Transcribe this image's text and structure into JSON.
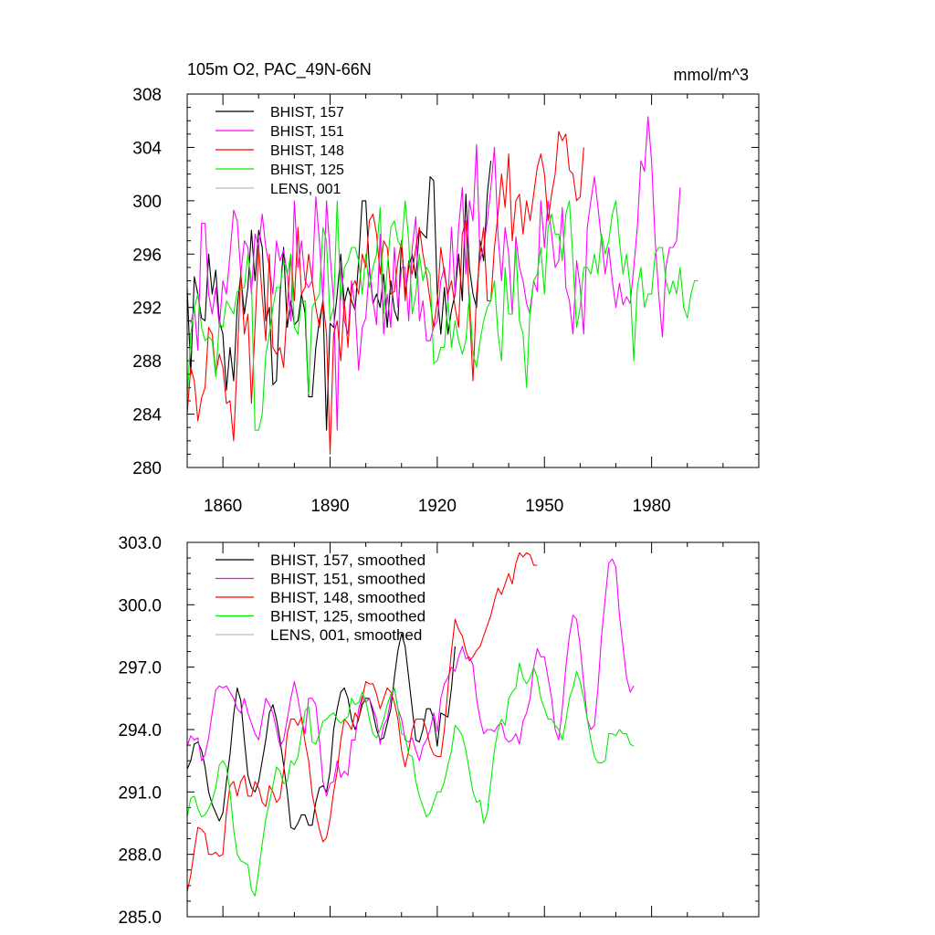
{
  "chart_data": [
    {
      "type": "line",
      "title_left": "105m O2, PAC_49N-66N",
      "title_right": "mmol/m^3",
      "xlim": [
        1850,
        2010
      ],
      "ylim": [
        280,
        308
      ],
      "yticks": [
        280,
        284,
        288,
        292,
        296,
        300,
        304,
        308
      ],
      "ytick_labels": [
        "280",
        "284",
        "288",
        "292",
        "296",
        "300",
        "304",
        "308"
      ],
      "xticks": [
        1860,
        1890,
        1920,
        1950,
        1980
      ],
      "xtick_labels": [
        "1860",
        "1890",
        "1920",
        "1950",
        "1980"
      ],
      "legend": [
        {
          "label": "BHIST, 157",
          "color": "#000000"
        },
        {
          "label": "BHIST, 151",
          "color": "#ff00ff"
        },
        {
          "label": "BHIST, 148",
          "color": "#ff0000"
        },
        {
          "label": "BHIST, 125",
          "color": "#00ee00"
        },
        {
          "label": "LENS, 001",
          "color": "#bbbbbb"
        }
      ],
      "series": [
        {
          "name": "BHIST, 157",
          "color": "#000000",
          "x_start": 1850,
          "values": [
            293.5,
            287,
            294.3,
            293,
            291.2,
            291,
            296,
            293,
            294.8,
            291,
            290,
            285.8,
            289,
            286.5,
            292,
            294.5,
            291.5,
            293.5,
            297.8,
            294,
            297.8,
            296.5,
            291,
            292,
            286.2,
            286.5,
            293,
            296.5,
            290.5,
            292.5,
            290.7,
            291,
            293,
            291.6,
            285.3,
            285.3,
            289,
            291,
            292.5,
            282.8,
            290.8,
            290.5,
            293,
            296,
            292.3,
            293.5,
            292.5,
            291.8,
            295.5,
            300,
            300,
            295,
            292.3,
            293,
            292,
            294.5,
            290.5,
            294,
            291.8,
            291,
            297,
            293,
            295,
            296,
            294.2,
            297.8,
            297.5,
            297.2,
            301.8,
            301.5,
            293,
            290,
            293.5,
            290,
            291.8,
            293,
            296,
            292.5,
            300.5,
            295,
            293,
            292,
            297,
            295.5,
            300.5,
            303
          ]
        },
        {
          "name": "BHIST, 151",
          "color": "#ff00ff",
          "x_start": 1851,
          "values": [
            290.8,
            292,
            288.8,
            298.3,
            298.3,
            293,
            291.5,
            293.5,
            290.5,
            294,
            293,
            296,
            299.3,
            298.5,
            294.5,
            297,
            296.5,
            293,
            297.5,
            296.5,
            299,
            296.5,
            295,
            293,
            297,
            295.5,
            296.3,
            294.5,
            291,
            300,
            295,
            297,
            294,
            293.5,
            294,
            300.3,
            297,
            292.5,
            300,
            296,
            292.5,
            282.8,
            295.5,
            291,
            290,
            294,
            292,
            287.3,
            290.5,
            291.2,
            295,
            292.5,
            290.7,
            297.5,
            290,
            293,
            290.5,
            296.5,
            292,
            295,
            295,
            291,
            296.5,
            298.8,
            291,
            292.5,
            289.5,
            289.5,
            290.5,
            291,
            294,
            295,
            292.5,
            298,
            293,
            298,
            301,
            294.5,
            300,
            298.5,
            304.2,
            295.5,
            296.5,
            298.5,
            301,
            304,
            297.5,
            294,
            298,
            296,
            291.5,
            297.3,
            295,
            294,
            292.3,
            291.5,
            294,
            293.2,
            300,
            296.5,
            300,
            297.5,
            295,
            295.5,
            299.5,
            293.5,
            292.5,
            290,
            295.5,
            293.5,
            290,
            298,
            300,
            301.8,
            299.5,
            297,
            294.5,
            296.5,
            294,
            292,
            293.8,
            292.2,
            292.8,
            292.3,
            295,
            298,
            303,
            302.2,
            306.3,
            303,
            297,
            293,
            289.8,
            295,
            296.5,
            296.5,
            297,
            301
          ]
        },
        {
          "name": "BHIST, 148",
          "color": "#ff0000",
          "x_start": 1850,
          "values": [
            284,
            287.5,
            286.5,
            283.5,
            285.2,
            286,
            290.5,
            290,
            287,
            288.5,
            287.5,
            284.8,
            285,
            282,
            288,
            294.7,
            290,
            291.5,
            284.8,
            290.5,
            296.5,
            292.8,
            289.5,
            296,
            289,
            288.5,
            289,
            287.5,
            292,
            296,
            292.5,
            298,
            293,
            293.5,
            296,
            294,
            292,
            290.5,
            292.5,
            290,
            281,
            290,
            291,
            288,
            292.5,
            289,
            293.5,
            294,
            293,
            296,
            295,
            298.5,
            299,
            297.5,
            294.5,
            297,
            296.5,
            293,
            293.2,
            295.5,
            297,
            292.5,
            295.5,
            294.5,
            296.5,
            298,
            296,
            294.5,
            292.5,
            290.5,
            292.5,
            296.5,
            294.5,
            293,
            294,
            292,
            290.5,
            297.5,
            298.5,
            292,
            286.5,
            293,
            296,
            298,
            292.5,
            292.5,
            296.5,
            299,
            302,
            299.5,
            303.5,
            297,
            300,
            300.5,
            297.5,
            300,
            298.5,
            300.5,
            302.5,
            303.5,
            302,
            298.5,
            300.5,
            302,
            305.2,
            304.5,
            305,
            302.3,
            302,
            300,
            300.3,
            304
          ]
        },
        {
          "name": "BHIST, 125",
          "color": "#00ee00",
          "x_start": 1850,
          "values": [
            285,
            290,
            292,
            293,
            290.5,
            289.5,
            289.8,
            289.5,
            286.8,
            290.8,
            290.5,
            292.5,
            292,
            291.5,
            293.2,
            293.3,
            293.5,
            296,
            294,
            282.8,
            282.8,
            284,
            288.5,
            290,
            292,
            293.5,
            293.5,
            295.5,
            294.5,
            296,
            290.5,
            290,
            292.5,
            292.5,
            285.5,
            292,
            292.5,
            293,
            298,
            297,
            291,
            292,
            300,
            292.5,
            295,
            295.5,
            296.5,
            296.5,
            295.5,
            293,
            296,
            293.5,
            295,
            296,
            299.5,
            291.5,
            295,
            298,
            298.5,
            297,
            296.5,
            300,
            297,
            291.5,
            293,
            296,
            294,
            295,
            294.5,
            287.8,
            288,
            289,
            289,
            292.5,
            289,
            291,
            289.5,
            288.5,
            289.5,
            293,
            288.5,
            287.5,
            289.5,
            291,
            292,
            292.5,
            294,
            290,
            288,
            295,
            291.5,
            291.5,
            296.5,
            291,
            290,
            286,
            292,
            294,
            294.5,
            296.5,
            293,
            298,
            299,
            297.5,
            297.5,
            295.5,
            299,
            300,
            295.5,
            290.5,
            292,
            295,
            295,
            294.5,
            296,
            294.5,
            297.5,
            296,
            297,
            299,
            300,
            297,
            294.5,
            296,
            293.5,
            288,
            293.5,
            295,
            292,
            293,
            293,
            296,
            296.5,
            296.5,
            294,
            293,
            294,
            293,
            295,
            292,
            291.2,
            293,
            294,
            294
          ]
        }
      ]
    },
    {
      "type": "line",
      "xlim": [
        1850,
        2010
      ],
      "ylim": [
        285,
        303
      ],
      "yticks": [
        285,
        288,
        291,
        294,
        297,
        300,
        303
      ],
      "ytick_labels": [
        "285.0",
        "288.0",
        "291.0",
        "294.0",
        "297.0",
        "300.0",
        "303.0"
      ],
      "xticks": [
        1860,
        1890,
        1920,
        1950,
        1980
      ],
      "legend": [
        {
          "label": "BHIST, 157, smoothed",
          "color": "#000000"
        },
        {
          "label": "BHIST, 151, smoothed",
          "color": "#ff00ff"
        },
        {
          "label": "BHIST, 148, smoothed",
          "color": "#ff0000"
        },
        {
          "label": "BHIST, 125, smoothed",
          "color": "#00ee00"
        },
        {
          "label": "LENS, 001, smoothed",
          "color": "#bbbbbb"
        }
      ],
      "series": [
        {
          "name": "BHIST, 157, smoothed",
          "color": "#000000",
          "x_start": 1850,
          "values": [
            292.1,
            292.5,
            293.3,
            293.4,
            293,
            292.2,
            291,
            290.4,
            290,
            289.6,
            290,
            291.5,
            292.8,
            294.7,
            296,
            295.4,
            293.5,
            291.8,
            291.2,
            291,
            291.5,
            292.5,
            293.5,
            294.8,
            295.2,
            294.5,
            293.5,
            292.3,
            291,
            289.3,
            289.2,
            289.5,
            289.9,
            289.9,
            289.4,
            289.4,
            290.5,
            291.2,
            291.3,
            291,
            292,
            294,
            295,
            295.8,
            296,
            295.5,
            294.5,
            294,
            294.5,
            295.2,
            295.5,
            295.5,
            294.8,
            294,
            293.5,
            293.6,
            294.3,
            295,
            296.5,
            297.8,
            298.6,
            298,
            296.5,
            295,
            293.5,
            293.4,
            294,
            295,
            295,
            294.5,
            293.2,
            294.8,
            294.7,
            294.6,
            296,
            298
          ]
        },
        {
          "name": "BHIST, 151, smoothed",
          "color": "#ff00ff",
          "x_start": 1850,
          "values": [
            293.2,
            293.7,
            293.5,
            293.6,
            292.5,
            292.8,
            293.6,
            294.8,
            295.9,
            296.1,
            296,
            296.1,
            295.8,
            295.5,
            295,
            294.8,
            295.5,
            294.8,
            294.3,
            293.8,
            293.5,
            294.5,
            295.5,
            295.2,
            294.8,
            294,
            293.2,
            293.5,
            294.5,
            295.5,
            296.3,
            295.5,
            294.5,
            293.8,
            295.5,
            295.5,
            295.2,
            293.5,
            291.5,
            290.8,
            291.4,
            291.5,
            292.5,
            291.7,
            292,
            291.8,
            293.5,
            293.5,
            295,
            295.6,
            295.3,
            295.5,
            295,
            294.5,
            293.3,
            294.2,
            294.5,
            295.5,
            296,
            295,
            294.5,
            293.5,
            293.4,
            293.6,
            293,
            292.5,
            293.2,
            293.5,
            294,
            294.8,
            293.9,
            295.5,
            296.2,
            296.5,
            297,
            296.8,
            297.5,
            298,
            297.4,
            297.5,
            297.1,
            295.5,
            294.5,
            293.8,
            294,
            294,
            293.9,
            294.2,
            294.3,
            293.6,
            293.4,
            293.5,
            293.8,
            293.3,
            294.4,
            294.8,
            295.5,
            297,
            297.9,
            297.5,
            297.5,
            296.5,
            295.5,
            294,
            293.5,
            295,
            297,
            298.5,
            299.5,
            299.3,
            298,
            296.2,
            294.5,
            294,
            294.2,
            296,
            298.5,
            300.3,
            302,
            302.2,
            301.8,
            299.5,
            298,
            296.5,
            295.8,
            296.1
          ]
        },
        {
          "name": "BHIST, 148, smoothed",
          "color": "#ff0000",
          "x_start": 1850,
          "values": [
            286.2,
            287,
            288.2,
            289.3,
            289.2,
            289,
            288,
            288,
            288.1,
            287.9,
            288,
            290,
            291.3,
            291.5,
            290.8,
            291.5,
            291.8,
            290.8,
            290.8,
            291.5,
            291.2,
            290.5,
            290.3,
            291.3,
            291,
            290.5,
            290.7,
            292,
            293.8,
            294.5,
            294.5,
            294.2,
            294.6,
            293.4,
            292.5,
            290.9,
            290,
            289.2,
            288.6,
            288.8,
            289.7,
            291,
            292,
            293.5,
            294.5,
            294.3,
            294,
            294.8,
            294.5,
            295.5,
            296.3,
            296.2,
            296.2,
            295.7,
            295,
            295.5,
            296,
            295.8,
            295.3,
            294.5,
            293,
            292.2,
            293,
            294,
            294.5,
            294.5,
            294.5,
            294,
            293.2,
            292.8,
            292.7,
            292.7,
            294,
            296,
            297.8,
            299.3,
            298.8,
            298.5,
            297.8,
            297.3,
            297.5,
            297.8,
            298,
            298.5,
            299,
            299.5,
            300.2,
            300.8,
            300.5,
            301,
            301.5,
            301,
            302,
            302.5,
            302.3,
            302.5,
            302.4,
            301.9,
            301.9
          ]
        },
        {
          "name": "BHIST, 125, smoothed",
          "color": "#00ee00",
          "x_start": 1850,
          "values": [
            289.8,
            290.7,
            290.8,
            290.2,
            289.8,
            289.9,
            290.2,
            290.6,
            291.2,
            292.3,
            292.5,
            292.2,
            291,
            289.2,
            288,
            287.7,
            287.6,
            287.5,
            286.3,
            286,
            287.2,
            288.5,
            289.7,
            290.5,
            291.3,
            292.2,
            292,
            291.4,
            291.5,
            292.5,
            292.3,
            292.7,
            293.8,
            294.9,
            295.1,
            293.4,
            293.3,
            293.8,
            294.4,
            294.5,
            294.7,
            294.8,
            294.5,
            294.3,
            294.5,
            294.6,
            295.5,
            295.2,
            295.3,
            295.8,
            295.4,
            294.5,
            293.8,
            293.6,
            294,
            294.5,
            295.2,
            295.7,
            296,
            295,
            293.8,
            293.7,
            292.8,
            292.7,
            291.5,
            290.8,
            290.3,
            289.8,
            290,
            290.5,
            291,
            291,
            291.5,
            292.3,
            293,
            294.2,
            294,
            293.7,
            293,
            292,
            291,
            290.5,
            290.6,
            289.5,
            290,
            291.5,
            293,
            294,
            294.5,
            294.2,
            295.5,
            295.8,
            296,
            297.2,
            296.5,
            296.2,
            296.5,
            297,
            296.5,
            295.5,
            295,
            294.5,
            294.5,
            294.2,
            294,
            293.5,
            294.4,
            295.5,
            296,
            296.8,
            296.3,
            295.5,
            294.5,
            293.5,
            292.7,
            292.4,
            292.4,
            292.5,
            293.8,
            293.8,
            293.7,
            294,
            293.8,
            293.8,
            293.3,
            293.2
          ]
        }
      ]
    }
  ]
}
